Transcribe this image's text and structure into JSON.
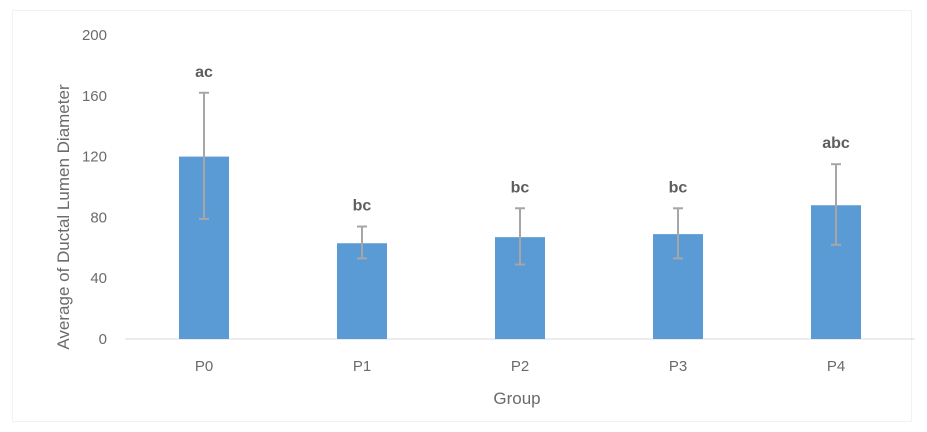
{
  "chart_data": {
    "type": "bar",
    "xlabel": "Group",
    "ylabel": "Average of Ductal Lumen Diameter",
    "categories": [
      "P0",
      "P1",
      "P2",
      "P3",
      "P4"
    ],
    "values": [
      120,
      63,
      67,
      69,
      88
    ],
    "error_low": [
      79,
      53,
      49,
      53,
      62
    ],
    "error_high": [
      162,
      74,
      86,
      86,
      115
    ],
    "significance_labels": [
      "ac",
      "bc",
      "bc",
      "bc",
      "abc"
    ],
    "ylim": [
      0,
      200
    ],
    "yticks": [
      "0",
      "40",
      "80",
      "120",
      "160",
      "200"
    ],
    "grid": false,
    "legend": "none",
    "colors": {
      "bar": "#5b9bd5",
      "error_bar": "#a6a6a6",
      "axis": "#d9d9d9",
      "text": "#6b6b6b"
    }
  }
}
